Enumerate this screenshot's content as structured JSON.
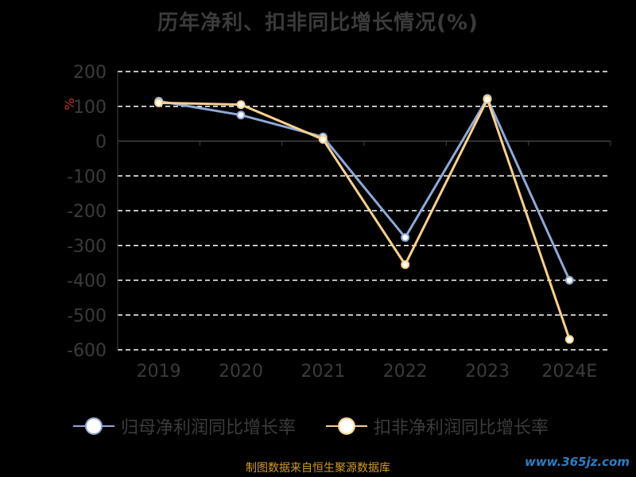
{
  "chart_data": {
    "type": "line",
    "title": "历年净利、扣非同比增长情况(%)",
    "ylabel": "%",
    "categories": [
      "2019",
      "2020",
      "2021",
      "2022",
      "2023",
      "2024E"
    ],
    "ylim": [
      -600,
      200
    ],
    "yticks": [
      "200",
      "100",
      "0",
      "-100",
      "-200",
      "-300",
      "-400",
      "-500",
      "-600"
    ],
    "series": [
      {
        "name": "归母净利润同比增长率",
        "color": "#8fa8d6",
        "values": [
          115,
          75,
          12,
          -277,
          123,
          -400
        ]
      },
      {
        "name": "扣非净利润同比增长率",
        "color": "#fbd08f",
        "values": [
          110,
          105,
          5,
          -355,
          120,
          -570
        ]
      }
    ],
    "grid": true,
    "legend": "bottom"
  },
  "footer": {
    "source": "制图数据来自恒生聚源数据库"
  },
  "watermark": "www.365jz.com"
}
